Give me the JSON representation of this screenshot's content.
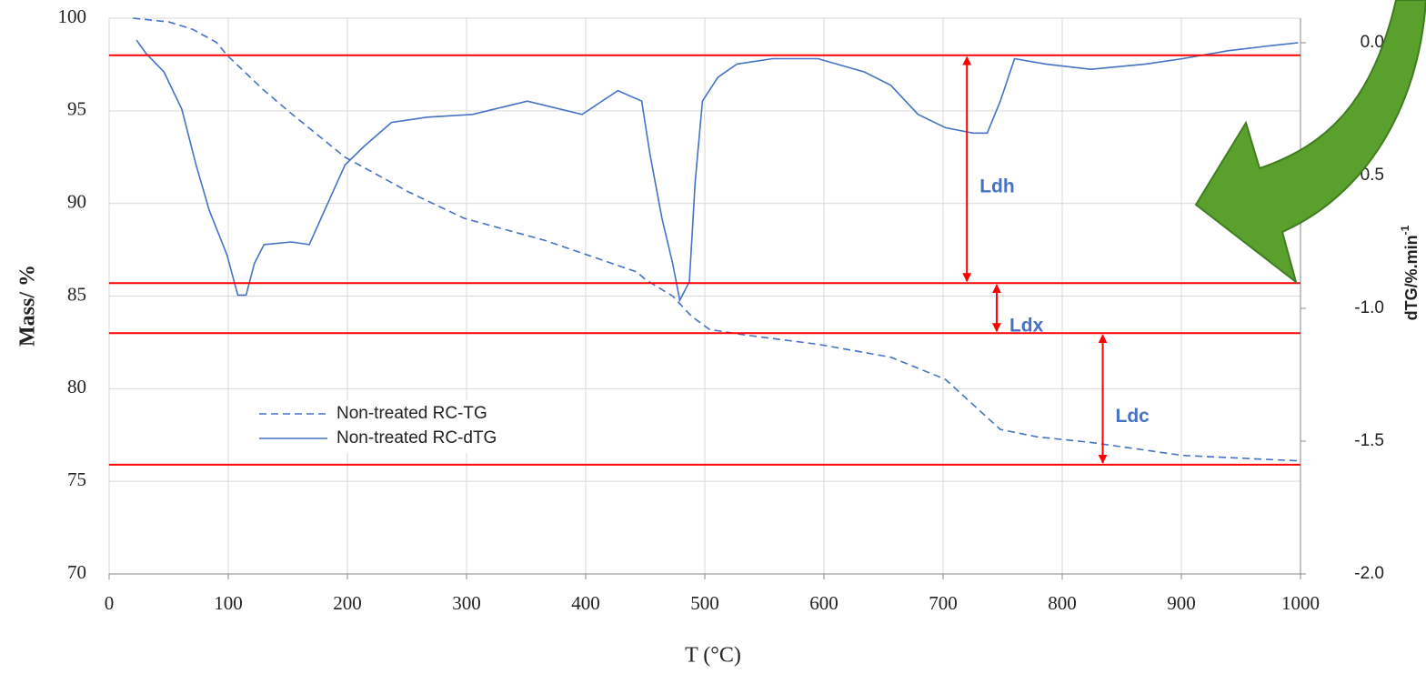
{
  "chart_data": {
    "type": "line",
    "x_label": "T (°C)",
    "y_label": "Mass/ %",
    "y2_label": "dTG/%.min",
    "y2_label_sup": "-1",
    "xlim": [
      0,
      1000
    ],
    "xticks": [
      0,
      100,
      200,
      300,
      400,
      500,
      600,
      700,
      800,
      900,
      1000
    ],
    "ylim": [
      70,
      100
    ],
    "yticks": [
      70,
      75,
      80,
      85,
      90,
      95,
      100
    ],
    "y2lim": [
      -2.0,
      0.0925
    ],
    "y2ticks": [
      {
        "value": -2.0,
        "label": "-2.0"
      },
      {
        "value": -1.5,
        "label": "-1.5"
      },
      {
        "value": -1.0,
        "label": "-1.0"
      },
      {
        "value": -0.5,
        "label": "-0.5"
      },
      {
        "value": 0.0,
        "label": "0.0"
      }
    ],
    "grid": true,
    "legend": "center-left",
    "series": [
      {
        "name": "Non-treated RC-TG",
        "color": "#4472c4",
        "style": "dashed",
        "axis": "y",
        "x": [
          20,
          50,
          70,
          90,
          99,
          130,
          153,
          198,
          252,
          298,
          366,
          443,
          450,
          473,
          489,
          504,
          534,
          595,
          656,
          702,
          748,
          779,
          824,
          901,
          1000
        ],
        "values": [
          100,
          99.8,
          99.4,
          98.7,
          98.0,
          96.1,
          94.85,
          92.5,
          90.6,
          89.2,
          88.0,
          86.3,
          85.9,
          85.0,
          83.9,
          83.2,
          82.9,
          82.4,
          81.7,
          80.5,
          77.8,
          77.4,
          77.1,
          76.4,
          76.1
        ]
      },
      {
        "name": "Non-treated RC-dTG",
        "color": "#4472c4",
        "style": "solid",
        "axis": "y2",
        "x": [
          23,
          31,
          46,
          61,
          73,
          84,
          99,
          108,
          115,
          122,
          130,
          153,
          168,
          183,
          198,
          214,
          237,
          267,
          305,
          351,
          397,
          427,
          447,
          454,
          464,
          473,
          479,
          487,
          492,
          498,
          511,
          527,
          557,
          595,
          634,
          656,
          679,
          702,
          725,
          737,
          748,
          760,
          786,
          824,
          870,
          901,
          939,
          977,
          998
        ],
        "values": [
          0.01,
          -0.04,
          -0.11,
          -0.25,
          -0.46,
          -0.63,
          -0.8,
          -0.95,
          -0.95,
          -0.83,
          -0.76,
          -0.75,
          -0.76,
          -0.61,
          -0.46,
          -0.39,
          -0.3,
          -0.28,
          -0.27,
          -0.22,
          -0.27,
          -0.18,
          -0.22,
          -0.42,
          -0.66,
          -0.83,
          -0.97,
          -0.9,
          -0.52,
          -0.22,
          -0.13,
          -0.08,
          -0.06,
          -0.06,
          -0.11,
          -0.16,
          -0.27,
          -0.32,
          -0.34,
          -0.34,
          -0.22,
          -0.06,
          -0.08,
          -0.1,
          -0.08,
          -0.06,
          -0.03,
          -0.01,
          0.0
        ]
      }
    ],
    "reference_lines": {
      "color": "#ff0000",
      "values": [
        98.0,
        85.7,
        83.0,
        75.9
      ]
    },
    "annotations": [
      {
        "text": "Ldh",
        "x": 720,
        "between": [
          0,
          1
        ]
      },
      {
        "text": "Ldx",
        "x": 745,
        "between": [
          1,
          2
        ]
      },
      {
        "text": "Ldc",
        "x": 834,
        "between": [
          2,
          3
        ]
      }
    ]
  }
}
